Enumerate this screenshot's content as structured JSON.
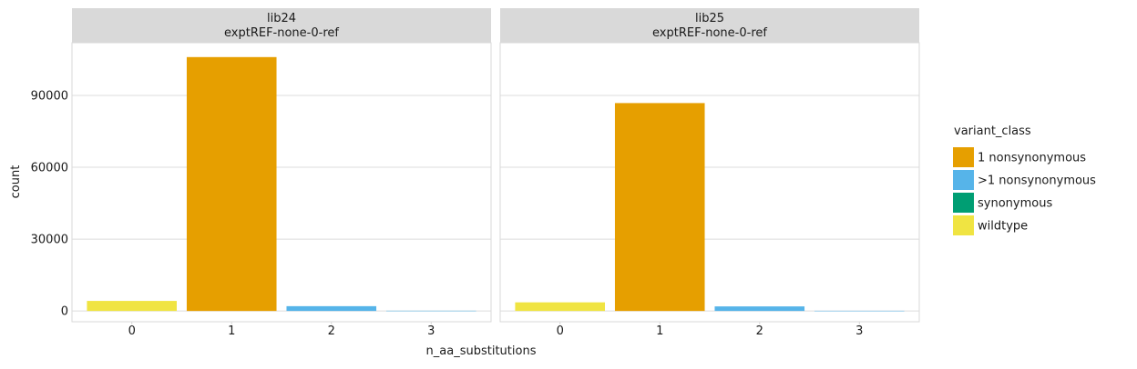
{
  "chart_data": {
    "type": "bar",
    "xlabel": "n_aa_substitutions",
    "ylabel": "count",
    "x_categories": [
      "0",
      "1",
      "2",
      "3"
    ],
    "ylim": [
      -4500,
      112000
    ],
    "yticks": [
      0,
      30000,
      60000,
      90000
    ],
    "ytick_labels": [
      "0",
      "30000",
      "60000",
      "90000"
    ],
    "grid": true,
    "legend": {
      "title": "variant_class",
      "placement": "right",
      "entries": [
        {
          "key": "1 nonsynonymous",
          "label": "1 nonsynonymous",
          "color": "#E69F00"
        },
        {
          "key": ">1 nonsynonymous",
          "label": ">1 nonsynonymous",
          "color": "#56B4E9"
        },
        {
          "key": "synonymous",
          "label": "synonymous",
          "color": "#009E73"
        },
        {
          "key": "wildtype",
          "label": "wildtype",
          "color": "#F0E442"
        }
      ]
    },
    "panels": [
      {
        "library": "lib24",
        "sample": "exptREF-none-0-ref",
        "bars": [
          {
            "x": "0",
            "variant_class": "wildtype",
            "value": 4200
          },
          {
            "x": "1",
            "variant_class": "1 nonsynonymous",
            "value": 106000
          },
          {
            "x": "2",
            "variant_class": ">1 nonsynonymous",
            "value": 2000
          },
          {
            "x": "3",
            "variant_class": ">1 nonsynonymous",
            "value": 100
          }
        ]
      },
      {
        "library": "lib25",
        "sample": "exptREF-none-0-ref",
        "bars": [
          {
            "x": "0",
            "variant_class": "wildtype",
            "value": 3600
          },
          {
            "x": "1",
            "variant_class": "1 nonsynonymous",
            "value": 86800
          },
          {
            "x": "2",
            "variant_class": ">1 nonsynonymous",
            "value": 1900
          },
          {
            "x": "3",
            "variant_class": ">1 nonsynonymous",
            "value": 80
          }
        ]
      }
    ]
  }
}
